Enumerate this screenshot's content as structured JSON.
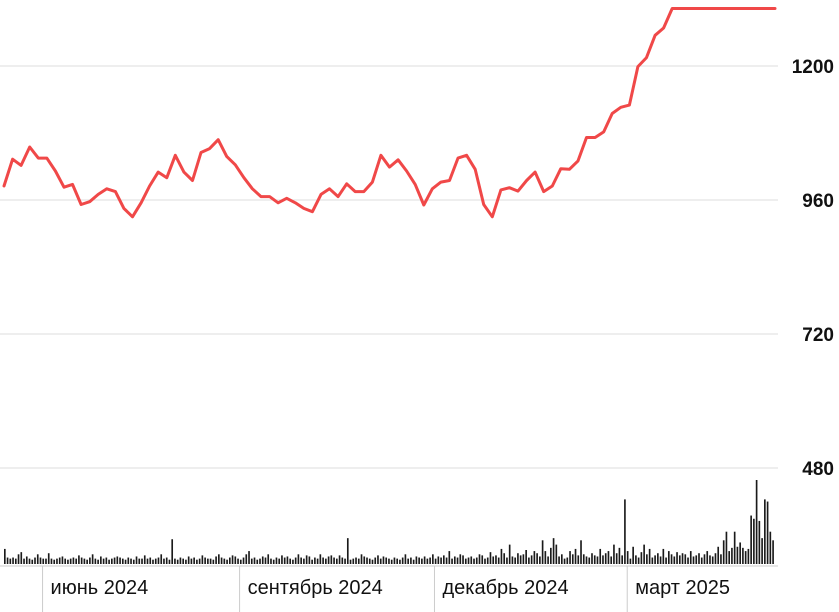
{
  "chart_data": {
    "type": "line",
    "title": "",
    "xlabel": "",
    "ylabel": "",
    "ylim": [
      440,
      1305
    ],
    "y_ticks": [
      480,
      720,
      960,
      1200
    ],
    "y_tick_labels": [
      "480",
      "720",
      "960",
      "1200"
    ],
    "x_month_labels": [
      {
        "label": "июнь 2024",
        "date": "2024-06-01"
      },
      {
        "label": "сентябрь 2024",
        "date": "2024-09-01"
      },
      {
        "label": "декабрь 2024",
        "date": "2024-12-01"
      },
      {
        "label": "март 2025",
        "date": "2025-03-01"
      }
    ],
    "x_range": [
      "2024-05-14",
      "2025-05-09"
    ],
    "grid": true,
    "legend": "none",
    "colors": {
      "line": "#f04848",
      "volume": "#1a1a1a",
      "grid": "#dddddd",
      "divider": "#cccccc"
    },
    "series": [
      {
        "kind": "price",
        "x": [
          "2024-05-14",
          "2024-05-18",
          "2024-05-22",
          "2024-05-26",
          "2024-05-30",
          "2024-06-03",
          "2024-06-07",
          "2024-06-11",
          "2024-06-15",
          "2024-06-19",
          "2024-06-23",
          "2024-06-27",
          "2024-07-01",
          "2024-07-05",
          "2024-07-09",
          "2024-07-13",
          "2024-07-17",
          "2024-07-21",
          "2024-07-25",
          "2024-07-29",
          "2024-08-02",
          "2024-08-06",
          "2024-08-10",
          "2024-08-14",
          "2024-08-18",
          "2024-08-22",
          "2024-08-26",
          "2024-08-30",
          "2024-09-03",
          "2024-09-07",
          "2024-09-11",
          "2024-09-15",
          "2024-09-19",
          "2024-09-23",
          "2024-09-27",
          "2024-10-01",
          "2024-10-05",
          "2024-10-09",
          "2024-10-13",
          "2024-10-17",
          "2024-10-21",
          "2024-10-25",
          "2024-10-29",
          "2024-11-02",
          "2024-11-06",
          "2024-11-10",
          "2024-11-14",
          "2024-11-18",
          "2024-11-22",
          "2024-11-26",
          "2024-11-30",
          "2024-12-04",
          "2024-12-08",
          "2024-12-12",
          "2024-12-16",
          "2024-12-20",
          "2024-12-24",
          "2024-12-28",
          "2025-01-01",
          "2025-01-05",
          "2025-01-09",
          "2025-01-13",
          "2025-01-17",
          "2025-01-21",
          "2025-01-25",
          "2025-01-29",
          "2025-02-02",
          "2025-02-06",
          "2025-02-10",
          "2025-02-14",
          "2025-02-18",
          "2025-02-22",
          "2025-02-26",
          "2025-03-02",
          "2025-03-06",
          "2025-03-10",
          "2025-03-14",
          "2025-03-18",
          "2025-03-22",
          "2025-03-26",
          "2025-03-30",
          "2025-04-03",
          "2025-04-07",
          "2025-04-11",
          "2025-04-15",
          "2025-04-19",
          "2025-04-23",
          "2025-04-27",
          "2025-05-01",
          "2025-05-05",
          "2025-05-09"
        ],
        "values": [
          985,
          1033,
          1022,
          1055,
          1035,
          1035,
          1012,
          983,
          988,
          952,
          957,
          970,
          980,
          975,
          945,
          930,
          955,
          985,
          1010,
          1000,
          1040,
          1010,
          995,
          1045,
          1052,
          1068,
          1038,
          1023,
          1000,
          980,
          966,
          966,
          955,
          963,
          955,
          945,
          939,
          970,
          980,
          966,
          989,
          975,
          975,
          992,
          1040,
          1019,
          1032,
          1012,
          988,
          951,
          980,
          992,
          995,
          1035,
          1040,
          1015,
          952,
          930,
          978,
          982,
          976,
          995,
          1010,
          975,
          985,
          1016,
          1015,
          1030,
          1072,
          1072,
          1082,
          1115,
          1126,
          1130,
          1199,
          1215,
          1255,
          1268,
          1303,
          1303,
          1303,
          1303,
          1303,
          1303,
          1303,
          1303,
          1303,
          1303,
          1303,
          1303,
          1303
        ]
      },
      {
        "kind": "volume",
        "values": [
          14,
          6,
          5,
          6,
          5,
          9,
          11,
          5,
          7,
          5,
          4,
          6,
          9,
          6,
          5,
          5,
          10,
          5,
          4,
          5,
          6,
          7,
          5,
          4,
          5,
          6,
          5,
          8,
          6,
          5,
          4,
          6,
          9,
          5,
          4,
          7,
          5,
          6,
          4,
          5,
          6,
          7,
          6,
          5,
          4,
          6,
          5,
          4,
          7,
          5,
          5,
          8,
          5,
          6,
          4,
          5,
          6,
          9,
          5,
          6,
          4,
          23,
          5,
          4,
          6,
          5,
          4,
          7,
          5,
          6,
          4,
          5,
          8,
          6,
          5,
          5,
          4,
          7,
          9,
          6,
          5,
          4,
          6,
          8,
          7,
          5,
          4,
          6,
          9,
          12,
          5,
          6,
          4,
          5,
          7,
          6,
          9,
          5,
          4,
          6,
          5,
          8,
          6,
          7,
          5,
          4,
          6,
          9,
          6,
          5,
          8,
          7,
          4,
          6,
          5,
          9,
          6,
          5,
          7,
          8,
          6,
          5,
          8,
          6,
          5,
          24,
          4,
          5,
          6,
          5,
          9,
          7,
          6,
          5,
          4,
          6,
          8,
          5,
          7,
          6,
          5,
          4,
          6,
          5,
          4,
          6,
          9,
          5,
          6,
          4,
          7,
          6,
          5,
          7,
          5,
          6,
          9,
          5,
          7,
          6,
          8,
          6,
          12,
          5,
          7,
          6,
          9,
          8,
          5,
          6,
          7,
          5,
          6,
          9,
          8,
          5,
          6,
          11,
          7,
          8,
          6,
          14,
          10,
          6,
          18,
          7,
          6,
          10,
          8,
          9,
          13,
          6,
          8,
          12,
          10,
          7,
          22,
          12,
          7,
          15,
          24,
          18,
          7,
          9,
          5,
          6,
          12,
          9,
          14,
          8,
          22,
          9,
          7,
          6,
          10,
          8,
          7,
          14,
          8,
          10,
          12,
          7,
          18,
          10,
          15,
          8,
          60,
          12,
          5,
          16,
          8,
          6,
          11,
          18,
          9,
          14,
          6,
          8,
          10,
          7,
          14,
          6,
          12,
          9,
          7,
          11,
          8,
          10,
          9,
          6,
          12,
          7,
          8,
          10,
          6,
          9,
          12,
          8,
          7,
          10,
          16,
          9,
          22,
          30,
          12,
          15,
          30,
          16,
          20,
          15,
          12,
          14,
          45,
          42,
          78,
          40,
          24,
          60,
          58,
          30,
          22
        ]
      }
    ]
  }
}
